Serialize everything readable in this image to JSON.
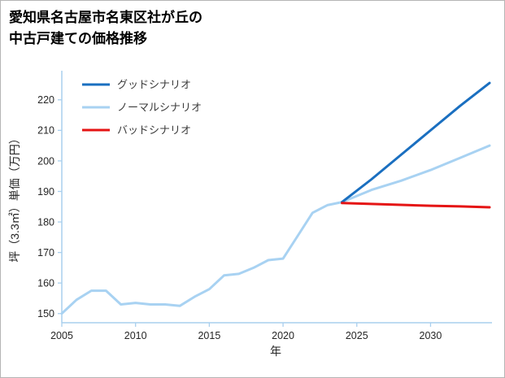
{
  "title": {
    "line1": "愛知県名古屋市名東区社が丘の",
    "line2": "中古戸建ての価格推移"
  },
  "chart_data": {
    "type": "line",
    "title": "愛知県名古屋市名東区社が丘の中古戸建ての価格推移",
    "xlabel": "年",
    "ylabel": "坪（3.3㎡）単価（万円）",
    "xlim": [
      2005,
      2034
    ],
    "ylim": [
      147,
      229
    ],
    "x_ticks": [
      2005,
      2010,
      2015,
      2020,
      2025,
      2030
    ],
    "y_ticks": [
      150,
      160,
      170,
      180,
      190,
      200,
      210,
      220
    ],
    "grid": false,
    "legend_position": "top-left",
    "axis_color": "#a9cfee",
    "series": [
      {
        "key": "good",
        "name": "グッドシナリオ",
        "color": "#1a6fc0",
        "width": 3,
        "x": [
          2024,
          2026,
          2028,
          2030,
          2032,
          2034
        ],
        "y": [
          186.5,
          194,
          202,
          210,
          218,
          225.5
        ]
      },
      {
        "key": "normal",
        "name": "ノーマルシナリオ",
        "color": "#a8d2f2",
        "width": 3,
        "x": [
          2005,
          2006,
          2007,
          2008,
          2009,
          2010,
          2011,
          2012,
          2013,
          2014,
          2015,
          2016,
          2017,
          2018,
          2019,
          2020,
          2021,
          2022,
          2023,
          2024,
          2026,
          2028,
          2030,
          2032,
          2034
        ],
        "y": [
          150,
          154.5,
          157.5,
          157.5,
          153,
          153.5,
          153,
          153,
          152.5,
          155.5,
          158,
          162.5,
          163,
          165,
          167.5,
          168,
          175.5,
          183,
          185.5,
          186.5,
          190.5,
          193.5,
          197,
          201,
          205
        ]
      },
      {
        "key": "bad",
        "name": "バッドシナリオ",
        "color": "#e51414",
        "width": 3,
        "x": [
          2024,
          2026,
          2028,
          2030,
          2032,
          2034
        ],
        "y": [
          186.2,
          185.9,
          185.6,
          185.3,
          185.1,
          184.8
        ]
      }
    ]
  }
}
